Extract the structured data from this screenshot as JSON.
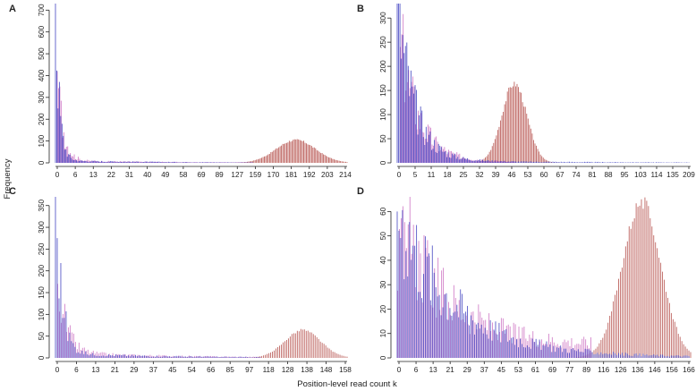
{
  "figure": {
    "ylabel": "Frequency",
    "xlabel": "Position-level read count k"
  },
  "colors": {
    "blue": "#3b3dbe",
    "pink": "#c45bb8",
    "red": "#a8322c",
    "axis": "#222222"
  },
  "chart_data": [
    {
      "panel": "A",
      "type": "bar",
      "ylim": [
        0,
        730
      ],
      "yticks": [
        0,
        100,
        200,
        300,
        400,
        500,
        600,
        700
      ],
      "xlim": [
        0,
        222
      ],
      "xtick_labels": [
        "0",
        "6",
        "13",
        "22",
        "31",
        "40",
        "49",
        "58",
        "69",
        "89",
        "127",
        "159",
        "170",
        "181",
        "192",
        "203",
        "214"
      ],
      "series": [
        {
          "name": "blue",
          "peak_x": 0,
          "peak_y": 730,
          "shape": "decay",
          "scale": 3.0,
          "tail": 10,
          "until": 150
        },
        {
          "name": "pink",
          "peak_x": 1,
          "peak_y": 420,
          "shape": "decay",
          "scale": 4.5,
          "tail": 10,
          "until": 150
        },
        {
          "name": "red",
          "peak_x": 183,
          "peak_y": 107,
          "shape": "gaussian",
          "sd": 15
        }
      ]
    },
    {
      "panel": "B",
      "type": "bar",
      "ylim": [
        0,
        330
      ],
      "yticks": [
        0,
        50,
        100,
        150,
        200,
        250,
        300
      ],
      "xlim": [
        0,
        213
      ],
      "xtick_labels": [
        "0",
        "5",
        "11",
        "18",
        "25",
        "32",
        "39",
        "46",
        "53",
        "60",
        "67",
        "74",
        "81",
        "88",
        "95",
        "103",
        "114",
        "135",
        "209"
      ],
      "series": [
        {
          "name": "blue",
          "peak_x": 0,
          "peak_y": 330,
          "shape": "decay",
          "scale": 12,
          "tail": 5,
          "until": 212
        },
        {
          "name": "pink",
          "peak_x": 2,
          "peak_y": 240,
          "shape": "decay",
          "scale": 13,
          "tail": 12,
          "until": 85
        },
        {
          "name": "red",
          "peak_x": 85,
          "peak_y": 168,
          "shape": "gaussian",
          "sd": 9
        }
      ]
    },
    {
      "panel": "C",
      "type": "bar",
      "ylim": [
        0,
        370
      ],
      "yticks": [
        0,
        50,
        100,
        150,
        200,
        250,
        300,
        350
      ],
      "xlim": [
        0,
        164
      ],
      "xtick_labels": [
        "0",
        "6",
        "13",
        "21",
        "29",
        "37",
        "45",
        "54",
        "66",
        "85",
        "97",
        "118",
        "128",
        "138",
        "148",
        "158"
      ],
      "series": [
        {
          "name": "blue",
          "peak_x": 0,
          "peak_y": 370,
          "shape": "decay",
          "scale": 3.5,
          "tail": 10,
          "until": 115
        },
        {
          "name": "pink",
          "peak_x": 1,
          "peak_y": 170,
          "shape": "decay",
          "scale": 5,
          "tail": 12,
          "until": 115
        },
        {
          "name": "red",
          "peak_x": 139,
          "peak_y": 65,
          "shape": "gaussian",
          "sd": 10
        }
      ]
    },
    {
      "panel": "D",
      "type": "bar",
      "ylim": [
        0,
        66
      ],
      "yticks": [
        0,
        10,
        20,
        30,
        40,
        50,
        60
      ],
      "xlim": [
        0,
        167
      ],
      "xtick_labels": [
        "0",
        "6",
        "13",
        "21",
        "29",
        "37",
        "45",
        "53",
        "61",
        "69",
        "77",
        "89",
        "116",
        "126",
        "136",
        "146",
        "156",
        "166"
      ],
      "series": [
        {
          "name": "blue",
          "peak_x": 0,
          "peak_y": 60,
          "shape": "decay",
          "scale": 30,
          "tail": 3,
          "until": 166
        },
        {
          "name": "pink",
          "peak_x": 5,
          "peak_y": 45,
          "shape": "hump",
          "scale": 28,
          "tail": 5,
          "until": 110
        },
        {
          "name": "red",
          "peak_x": 139,
          "peak_y": 65,
          "shape": "gaussian",
          "sd": 11
        }
      ]
    }
  ]
}
